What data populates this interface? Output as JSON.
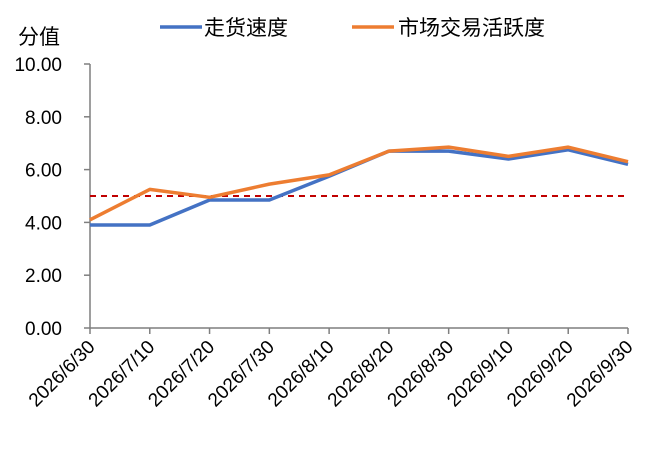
{
  "chart_data": {
    "type": "line",
    "ylabel": "分值",
    "ylim": [
      0,
      10
    ],
    "yticks": [
      "0.00",
      "2.00",
      "4.00",
      "6.00",
      "8.00",
      "10.00"
    ],
    "categories": [
      "2026/6/30",
      "2026/7/10",
      "2026/7/20",
      "2026/7/30",
      "2026/8/10",
      "2026/8/20",
      "2026/8/30",
      "2026/9/10",
      "2026/9/20",
      "2026/9/30"
    ],
    "series": [
      {
        "name": "走货速度",
        "color": "#4472C4",
        "values": [
          3.9,
          3.9,
          4.85,
          4.85,
          5.75,
          6.7,
          6.7,
          6.4,
          6.75,
          6.2
        ]
      },
      {
        "name": "市场交易活跃度",
        "color": "#ED7D31",
        "values": [
          4.1,
          5.25,
          4.95,
          5.45,
          5.8,
          6.7,
          6.85,
          6.5,
          6.85,
          6.3
        ]
      }
    ],
    "reference_line": {
      "value": 5.0,
      "color": "#C00000",
      "style": "dashed"
    },
    "legend_position": "top",
    "grid": false
  }
}
